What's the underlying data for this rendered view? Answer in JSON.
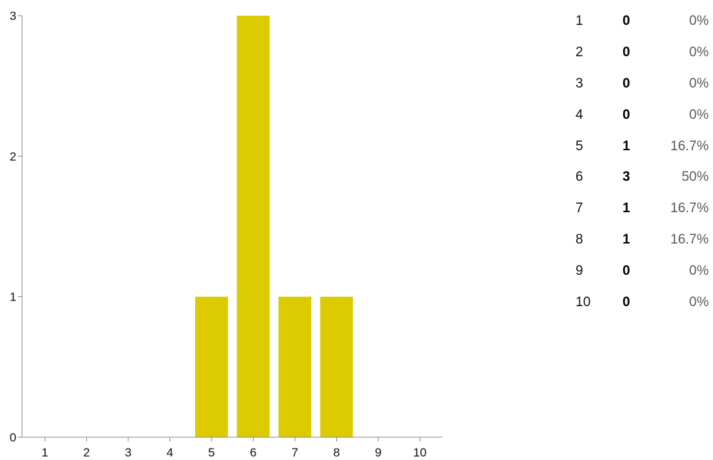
{
  "chart_data": {
    "type": "bar",
    "categories": [
      "1",
      "2",
      "3",
      "4",
      "5",
      "6",
      "7",
      "8",
      "9",
      "10"
    ],
    "values": [
      0,
      0,
      0,
      0,
      1,
      3,
      1,
      1,
      0,
      0
    ],
    "ylim": [
      0,
      3
    ],
    "yticks": [
      "0",
      "1",
      "2",
      "3"
    ],
    "grid": false,
    "colors": {
      "bar": "#dccb00",
      "axis": "#888888"
    }
  },
  "summary": {
    "rows": [
      {
        "label": "1",
        "count": "0",
        "percent": "0%"
      },
      {
        "label": "2",
        "count": "0",
        "percent": "0%"
      },
      {
        "label": "3",
        "count": "0",
        "percent": "0%"
      },
      {
        "label": "4",
        "count": "0",
        "percent": "0%"
      },
      {
        "label": "5",
        "count": "1",
        "percent": "16.7%"
      },
      {
        "label": "6",
        "count": "3",
        "percent": "50%"
      },
      {
        "label": "7",
        "count": "1",
        "percent": "16.7%"
      },
      {
        "label": "8",
        "count": "1",
        "percent": "16.7%"
      },
      {
        "label": "9",
        "count": "0",
        "percent": "0%"
      },
      {
        "label": "10",
        "count": "0",
        "percent": "0%"
      }
    ]
  }
}
